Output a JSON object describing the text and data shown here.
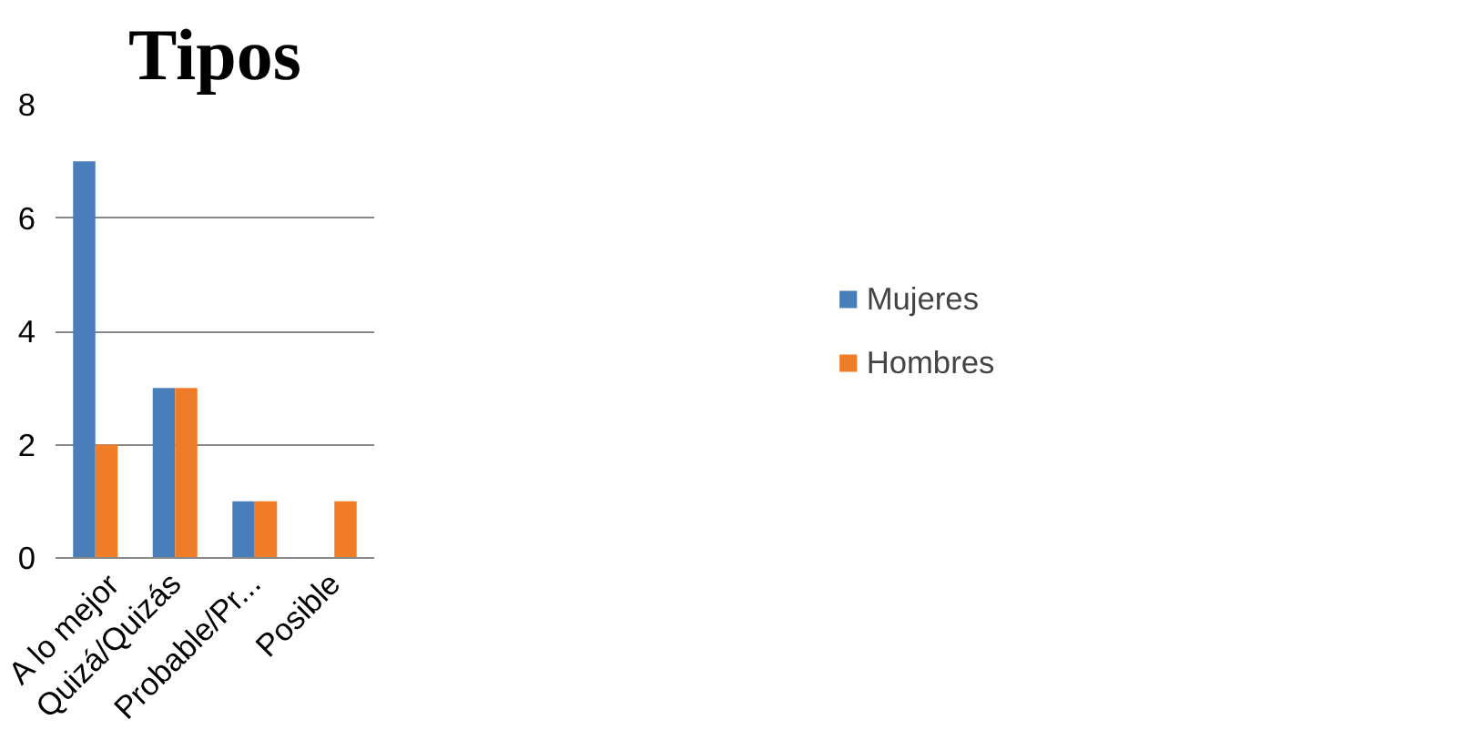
{
  "chart_data": {
    "type": "bar",
    "title": "Tipos",
    "categories": [
      "A lo mejor",
      "Quizá/Quizás",
      "Probable/Pr...",
      "Posible"
    ],
    "series": [
      {
        "name": "Mujeres",
        "color": "#4a7ebb",
        "values": [
          7,
          3,
          1,
          null
        ]
      },
      {
        "name": "Hombres",
        "color": "#f07c28",
        "values": [
          2,
          3,
          1,
          1
        ]
      }
    ],
    "ylim": [
      0,
      8
    ],
    "yticks": [
      0,
      2,
      4,
      6,
      8
    ],
    "grid": "y",
    "legend": "right"
  }
}
